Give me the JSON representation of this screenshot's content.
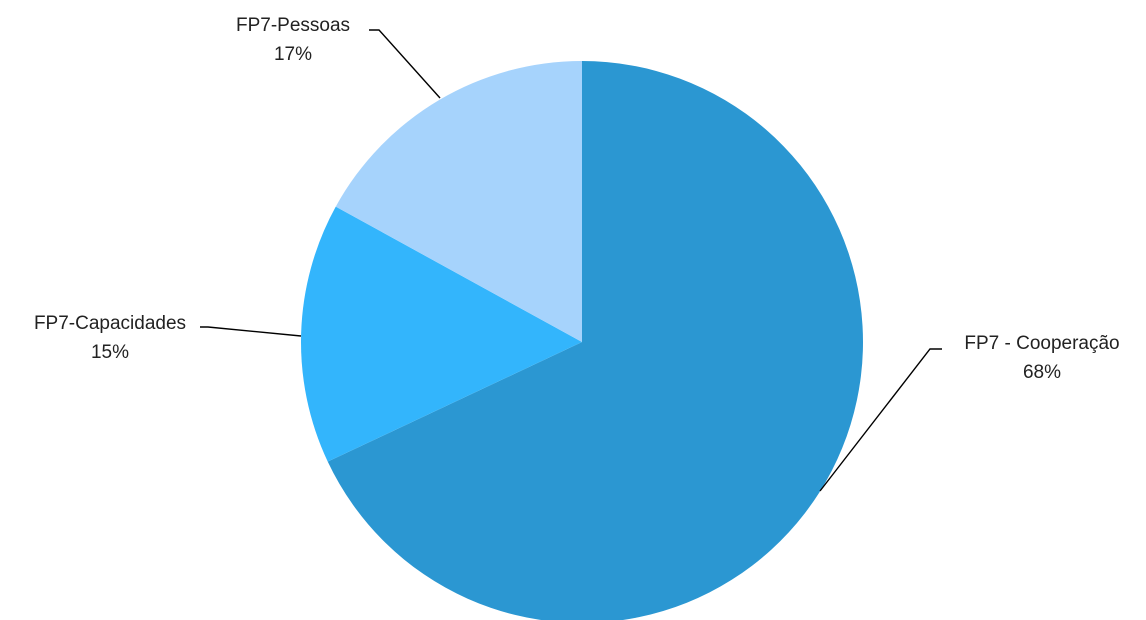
{
  "chart_data": {
    "type": "pie",
    "title": "",
    "legend": "none",
    "start": "12 o'clock",
    "direction": "clockwise",
    "slices": [
      {
        "name": "FP7 - Cooperação",
        "value": 68,
        "label": "68%",
        "color": "#2b97d2"
      },
      {
        "name": "FP7-Capacidades",
        "value": 15,
        "label": "15%",
        "color": "#33b5fc"
      },
      {
        "name": "FP7-Pessoas",
        "value": 17,
        "label": "17%",
        "color": "#a6d3fc"
      }
    ]
  }
}
